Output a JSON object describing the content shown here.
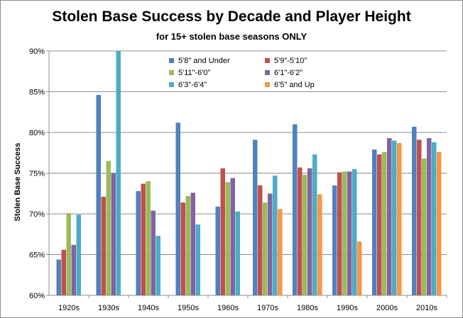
{
  "chart_data": {
    "type": "bar",
    "title": "Stolen Base Success by Decade and Player Height",
    "subtitle": "for 15+ stolen base seasons ONLY",
    "xlabel": "",
    "ylabel": "Stolen Base Success",
    "ylim": [
      60,
      90
    ],
    "yticks": [
      "60%",
      "65%",
      "70%",
      "75%",
      "80%",
      "85%",
      "90%"
    ],
    "grid": true,
    "legend_position": "top",
    "categories": [
      "1920s",
      "1930s",
      "1940s",
      "1950s",
      "1960s",
      "1970s",
      "1980s",
      "1990s",
      "2000s",
      "2010s"
    ],
    "series": [
      {
        "name": "5'8\" and Under",
        "color": "#4f81bd",
        "values": [
          64.4,
          84.6,
          72.8,
          81.2,
          70.9,
          79.1,
          81.0,
          73.5,
          77.9,
          80.7
        ]
      },
      {
        "name": "5'9\"-5'10\"",
        "color": "#c0504d",
        "values": [
          65.6,
          72.1,
          73.7,
          71.4,
          75.6,
          73.5,
          75.7,
          75.1,
          77.3,
          79.1
        ]
      },
      {
        "name": "5'11\"-6'0\"",
        "color": "#9bbb59",
        "values": [
          70.1,
          76.5,
          74.0,
          72.2,
          73.9,
          71.4,
          74.8,
          75.2,
          77.6,
          76.8
        ]
      },
      {
        "name": "6'1\"-6'2\"",
        "color": "#8064a2",
        "values": [
          66.2,
          75.0,
          70.4,
          72.6,
          74.4,
          72.5,
          75.6,
          75.2,
          79.3,
          79.3
        ]
      },
      {
        "name": "6'3\"-6'4\"",
        "color": "#4bacc6",
        "values": [
          69.9,
          90.0,
          67.3,
          68.7,
          70.3,
          74.7,
          77.3,
          75.5,
          79.0,
          78.8
        ]
      },
      {
        "name": "6'5\" and Up",
        "color": "#f79646",
        "values": [
          null,
          null,
          null,
          null,
          null,
          70.6,
          72.4,
          66.6,
          78.7,
          77.6
        ]
      }
    ]
  }
}
